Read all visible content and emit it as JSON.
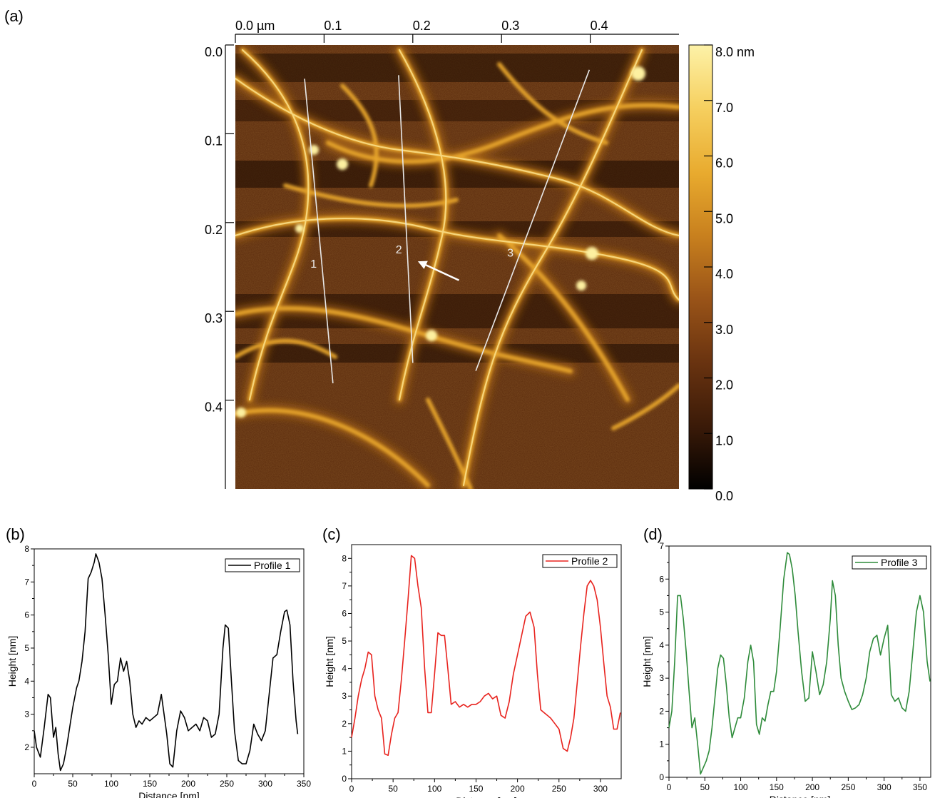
{
  "panels": {
    "a": "(a)",
    "b": "(b)",
    "c": "(c)",
    "d": "(d)"
  },
  "chart_data": [
    {
      "type": "heatmap",
      "panel": "(a)",
      "x_ticks": [
        "0.0 µm",
        "0.1",
        "0.2",
        "0.3",
        "0.4"
      ],
      "y_ticks": [
        "0.0",
        "0.1",
        "0.2",
        "0.3",
        "0.4"
      ],
      "colorbar_ticks": [
        "8.0 nm",
        "7.0",
        "6.0",
        "5.0",
        "4.0",
        "3.0",
        "2.0",
        "1.0",
        "0.0"
      ],
      "colorbar_range": [
        0,
        8
      ],
      "colormap": [
        "#000000",
        "#3a1a08",
        "#6b3410",
        "#9a5418",
        "#c8801e",
        "#e8aa2e",
        "#f6d060",
        "#fdf2a8"
      ],
      "xlim": [
        0,
        0.5
      ],
      "ylim": [
        0,
        0.5
      ],
      "profile_lines": [
        {
          "label": "1",
          "from": [
            0.078,
            0.038
          ],
          "to": [
            0.11,
            0.381
          ]
        },
        {
          "label": "2",
          "from": [
            0.184,
            0.034
          ],
          "to": [
            0.2,
            0.358
          ]
        },
        {
          "label": "3",
          "from": [
            0.399,
            0.028
          ],
          "to": [
            0.271,
            0.367
          ]
        }
      ],
      "arrow": {
        "from": [
          0.252,
          0.265
        ],
        "to": [
          0.213,
          0.247
        ]
      }
    },
    {
      "type": "line",
      "panel": "(b)",
      "xlabel": "Distance [nm]",
      "ylabel": "Height [nm]",
      "xlim": [
        0,
        350
      ],
      "ylim": [
        1.2,
        8
      ],
      "xticks": [
        0,
        50,
        100,
        150,
        200,
        250,
        300,
        350
      ],
      "yticks": [
        2,
        3,
        4,
        5,
        6,
        7,
        8
      ],
      "color": "#000000",
      "series": [
        {
          "name": "Profile 1",
          "x": [
            0,
            3,
            8,
            13,
            18,
            21,
            25,
            28,
            31,
            34,
            38,
            42,
            46,
            50,
            55,
            58,
            62,
            66,
            70,
            74,
            78,
            80,
            84,
            88,
            92,
            96,
            100,
            104,
            108,
            112,
            116,
            120,
            124,
            128,
            132,
            136,
            140,
            145,
            150,
            155,
            160,
            165,
            168,
            172,
            176,
            180,
            185,
            190,
            195,
            200,
            205,
            210,
            215,
            220,
            225,
            230,
            235,
            240,
            245,
            248,
            252,
            256,
            260,
            265,
            270,
            275,
            280,
            285,
            290,
            295,
            300,
            305,
            310,
            315,
            320,
            325,
            328,
            332,
            336,
            340,
            342
          ],
          "y": [
            2.5,
            2.0,
            1.7,
            2.6,
            3.6,
            3.5,
            2.3,
            2.6,
            1.8,
            1.3,
            1.5,
            2.0,
            2.6,
            3.2,
            3.8,
            4.0,
            4.6,
            5.5,
            7.1,
            7.3,
            7.6,
            7.85,
            7.6,
            7.1,
            6.0,
            4.8,
            3.3,
            3.9,
            4.0,
            4.7,
            4.3,
            4.6,
            4.0,
            3.0,
            2.6,
            2.8,
            2.7,
            2.9,
            2.8,
            2.9,
            3.0,
            3.6,
            3.1,
            2.4,
            1.5,
            1.4,
            2.5,
            3.1,
            2.9,
            2.5,
            2.6,
            2.7,
            2.5,
            2.9,
            2.8,
            2.3,
            2.4,
            3.0,
            5.0,
            5.7,
            5.6,
            4.0,
            2.5,
            1.6,
            1.5,
            1.5,
            1.9,
            2.7,
            2.4,
            2.2,
            2.5,
            3.6,
            4.7,
            4.8,
            5.5,
            6.1,
            6.15,
            5.7,
            4.0,
            2.8,
            2.4
          ]
        }
      ]
    },
    {
      "type": "line",
      "panel": "(c)",
      "xlabel": "Distance [nm]",
      "ylabel": "Height [nm]",
      "xlim": [
        0,
        325
      ],
      "ylim": [
        0,
        8.5
      ],
      "xticks": [
        0,
        50,
        100,
        150,
        200,
        250,
        300
      ],
      "yticks": [
        0,
        1,
        2,
        3,
        4,
        5,
        6,
        7,
        8
      ],
      "color": "#e8231e",
      "series": [
        {
          "name": "Profile 2",
          "x": [
            0,
            4,
            8,
            12,
            16,
            20,
            24,
            28,
            32,
            36,
            40,
            44,
            48,
            52,
            56,
            60,
            64,
            68,
            72,
            76,
            80,
            84,
            88,
            92,
            96,
            100,
            104,
            108,
            112,
            116,
            120,
            125,
            130,
            135,
            140,
            145,
            150,
            155,
            160,
            165,
            170,
            175,
            180,
            185,
            190,
            195,
            200,
            205,
            210,
            215,
            220,
            224,
            228,
            232,
            236,
            240,
            245,
            250,
            255,
            260,
            264,
            268,
            272,
            276,
            280,
            284,
            288,
            292,
            296,
            300,
            304,
            308,
            312,
            316,
            320,
            324
          ],
          "y": [
            1.5,
            2.2,
            3.0,
            3.6,
            4.0,
            4.6,
            4.5,
            3.0,
            2.5,
            2.2,
            0.9,
            0.85,
            1.6,
            2.2,
            2.4,
            3.6,
            5.0,
            6.5,
            8.1,
            8.0,
            7.0,
            6.2,
            4.0,
            2.4,
            2.4,
            3.8,
            5.3,
            5.2,
            5.2,
            4.0,
            2.7,
            2.8,
            2.6,
            2.7,
            2.6,
            2.7,
            2.7,
            2.8,
            3.0,
            3.1,
            2.9,
            3.0,
            2.3,
            2.2,
            2.8,
            3.8,
            4.5,
            5.2,
            5.9,
            6.05,
            5.5,
            3.8,
            2.5,
            2.4,
            2.3,
            2.2,
            2.0,
            1.8,
            1.1,
            1.0,
            1.5,
            2.2,
            3.5,
            4.8,
            6.0,
            7.0,
            7.2,
            7.0,
            6.5,
            5.5,
            4.2,
            3.0,
            2.6,
            1.8,
            1.8,
            2.4
          ]
        }
      ]
    },
    {
      "type": "line",
      "panel": "(d)",
      "xlabel": "Distance [nm]",
      "ylabel": "Height [nm]",
      "xlim": [
        0,
        365
      ],
      "ylim": [
        0,
        7
      ],
      "xticks": [
        0,
        50,
        100,
        150,
        200,
        250,
        300,
        350
      ],
      "yticks": [
        0,
        1,
        2,
        3,
        4,
        5,
        6,
        7
      ],
      "color": "#2e8b3a",
      "series": [
        {
          "name": "Profile 3",
          "x": [
            0,
            4,
            8,
            12,
            16,
            20,
            24,
            28,
            32,
            36,
            40,
            44,
            48,
            52,
            56,
            60,
            64,
            68,
            72,
            76,
            80,
            84,
            88,
            92,
            96,
            100,
            105,
            110,
            114,
            118,
            122,
            126,
            130,
            134,
            138,
            142,
            146,
            150,
            155,
            160,
            165,
            168,
            172,
            176,
            180,
            185,
            190,
            195,
            200,
            205,
            210,
            215,
            220,
            225,
            228,
            232,
            236,
            240,
            245,
            250,
            255,
            260,
            265,
            270,
            275,
            280,
            285,
            290,
            295,
            300,
            305,
            310,
            315,
            320,
            325,
            330,
            335,
            340,
            345,
            350,
            355,
            360,
            364
          ],
          "y": [
            1.5,
            2.0,
            3.5,
            5.5,
            5.5,
            4.8,
            3.8,
            2.6,
            1.5,
            1.8,
            1.0,
            0.1,
            0.3,
            0.5,
            0.8,
            1.5,
            2.4,
            3.3,
            3.7,
            3.6,
            2.8,
            1.8,
            1.2,
            1.5,
            1.8,
            1.8,
            2.4,
            3.5,
            4.0,
            3.5,
            1.6,
            1.3,
            1.8,
            1.7,
            2.2,
            2.6,
            2.6,
            3.2,
            4.5,
            6.0,
            6.8,
            6.75,
            6.3,
            5.5,
            4.4,
            3.2,
            2.3,
            2.4,
            3.8,
            3.2,
            2.5,
            2.8,
            3.5,
            4.8,
            5.95,
            5.5,
            4.0,
            3.0,
            2.6,
            2.3,
            2.05,
            2.1,
            2.2,
            2.5,
            3.0,
            3.8,
            4.2,
            4.3,
            3.7,
            4.2,
            4.6,
            2.5,
            2.3,
            2.4,
            2.1,
            2.0,
            2.6,
            3.8,
            5.0,
            5.5,
            5.0,
            3.5,
            2.9
          ]
        }
      ]
    }
  ]
}
